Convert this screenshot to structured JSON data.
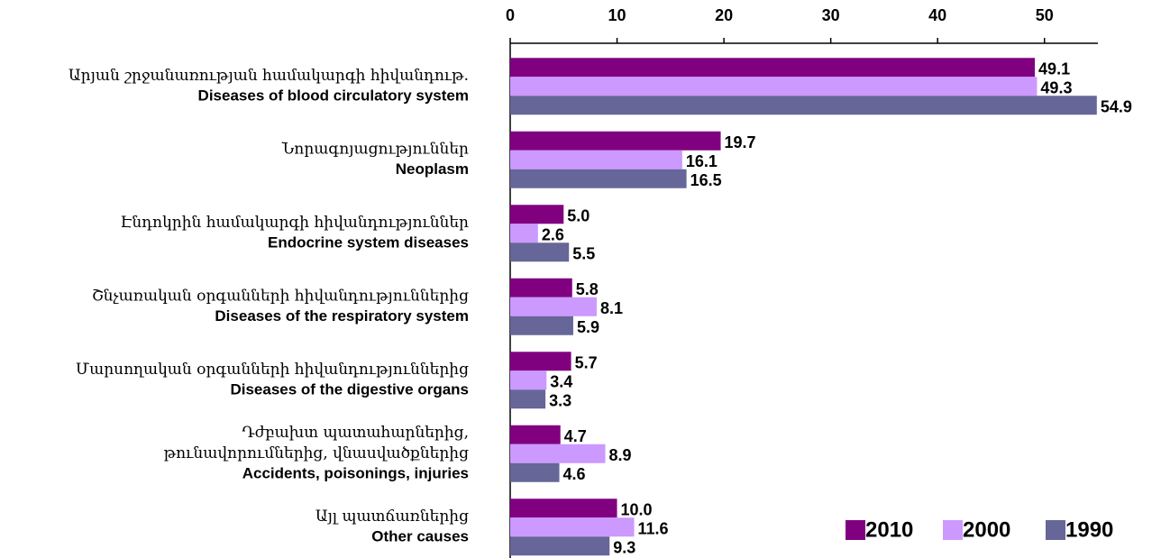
{
  "chart_data": {
    "type": "bar",
    "orientation": "horizontal",
    "categories": [
      [
        "Արյան շրջանառության համակարգի հիվանդութ.",
        "Diseases of blood circulatory system"
      ],
      [
        "Նորագոյացություններ",
        "Neoplasm"
      ],
      [
        "Էնդոկրին համակարգի հիվանդություններ",
        "Endocrine system diseases"
      ],
      [
        "Շնչառական օրգանների հիվանդություններից",
        "Diseases of the respiratory system"
      ],
      [
        "Մարսողական օրգանների հիվանդություններից",
        "Diseases of the digestive organs"
      ],
      [
        "Դժբախտ պատահարներից,",
        "թունավորումներից, վնասվածքներից",
        "Accidents, poisonings, injuries"
      ],
      [
        "Այլ պատճառներից",
        "Other causes"
      ]
    ],
    "series": [
      {
        "name": "2010",
        "color": "#800080",
        "values": [
          49.1,
          19.7,
          5.0,
          5.8,
          5.7,
          4.7,
          10.0
        ],
        "value_labels": [
          "49.1",
          "19.7",
          "5.0",
          "5.8",
          "5.7",
          "4.7",
          "10.0"
        ]
      },
      {
        "name": "2000",
        "color": "#cc99ff",
        "values": [
          49.3,
          16.1,
          2.6,
          8.1,
          3.4,
          8.9,
          11.6
        ],
        "value_labels": [
          "49.3",
          "16.1",
          "2.6",
          "8.1",
          "3.4",
          "8.9",
          "11.6"
        ]
      },
      {
        "name": "1990",
        "color": "#666699",
        "values": [
          54.9,
          16.5,
          5.5,
          5.9,
          3.3,
          4.6,
          9.3
        ],
        "value_labels": [
          "54.9",
          "16.5",
          "5.5",
          "5.9",
          "3.3",
          "4.6",
          "9.3"
        ]
      }
    ],
    "xlim": [
      0,
      55
    ],
    "xticks": [
      0,
      10,
      20,
      30,
      40,
      50
    ],
    "legend": "lower right"
  }
}
